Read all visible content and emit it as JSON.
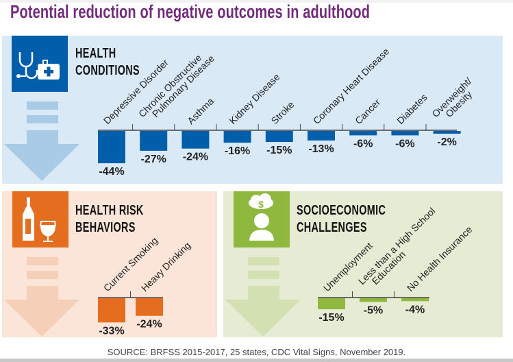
{
  "title": "Potential reduction of negative outcomes in adulthood",
  "source": "SOURCE: BRFSS 2015-2017, 25 states, CDC Vital Signs, November 2019.",
  "colors": {
    "title": "#722a7a",
    "blue_bar": "#005eaa",
    "blue_panel": "#d9eaf6",
    "blue_arrow": "#a9cbe6",
    "orange_bar": "#e46d1f",
    "orange_panel": "#fbe4d8",
    "orange_arrow": "#f6cfb9",
    "green_bar": "#8fb93e",
    "green_panel": "#e6ebd3",
    "green_arrow": "#d3e0b2"
  },
  "panels": {
    "health": {
      "heading_line1": "HEALTH",
      "heading_line2": "CONDITIONS",
      "icon": "stethoscope-medical-kit-icon"
    },
    "risk": {
      "heading_line1": "HEALTH RISK",
      "heading_line2": "BEHAVIORS",
      "icon": "wine-bottle-glass-icon"
    },
    "socio": {
      "heading_line1": "SOCIOECONOMIC",
      "heading_line2": "CHALLENGES",
      "icon": "person-money-cloud-icon"
    }
  },
  "chart_data": [
    {
      "type": "bar",
      "title": "Health Conditions",
      "categories": [
        [
          "Depressive Disorder"
        ],
        [
          "Chronic Obstructive",
          "Pulmonary Disease"
        ],
        [
          "Asthma"
        ],
        [
          "Kidney Disease"
        ],
        [
          "Stroke"
        ],
        [
          "Coronary Heart Disease"
        ],
        [
          "Cancer"
        ],
        [
          "Diabetes"
        ],
        [
          "Overweight/",
          "Obesity"
        ]
      ],
      "values": [
        -44,
        -27,
        -24,
        -16,
        -15,
        -13,
        -6,
        -6,
        -2
      ],
      "labels": [
        "-44%",
        "-27%",
        "-24%",
        "-16%",
        "-15%",
        "-13%",
        "-6%",
        "-6%",
        "-2%"
      ],
      "unit": "%",
      "ylim": [
        -50,
        0
      ],
      "grid": false
    },
    {
      "type": "bar",
      "title": "Health Risk Behaviors",
      "categories": [
        [
          "Current Smoking"
        ],
        [
          "Heavy Drinking"
        ]
      ],
      "values": [
        -33,
        -24
      ],
      "labels": [
        "-33%",
        "-24%"
      ],
      "unit": "%",
      "ylim": [
        -50,
        0
      ],
      "grid": false
    },
    {
      "type": "bar",
      "title": "Socioeconomic Challenges",
      "categories": [
        [
          "Unemployment"
        ],
        [
          "Less than a High School",
          "Education"
        ],
        [
          "No Health Insurance"
        ]
      ],
      "values": [
        -15,
        -5,
        -4
      ],
      "labels": [
        "-15%",
        "-5%",
        "-4%"
      ],
      "unit": "%",
      "ylim": [
        -50,
        0
      ],
      "grid": false
    }
  ]
}
